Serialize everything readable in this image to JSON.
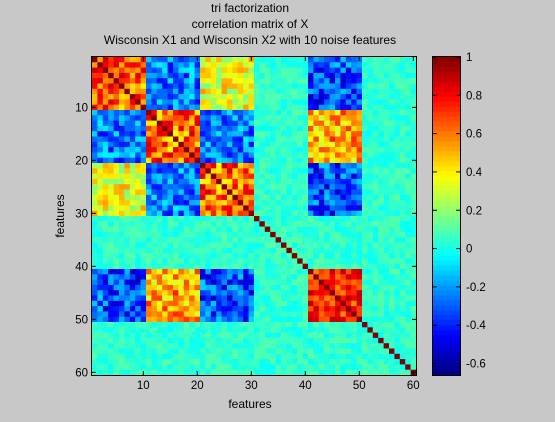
{
  "chart_data": {
    "type": "heatmap",
    "title": [
      "tri factorization",
      "correlation matrix of X",
      "Wisconsin X1 and Wisconsin X2 with 10 noise features"
    ],
    "xlabel": "features",
    "ylabel": "features",
    "x_ticks": [
      10,
      20,
      30,
      40,
      50,
      60
    ],
    "y_ticks": [
      10,
      20,
      30,
      40,
      50,
      60
    ],
    "n_features": 60,
    "colormap": "jet",
    "clim": [
      -0.66,
      1.0
    ],
    "colorbar_ticks": [
      1,
      0.8,
      0.6,
      0.4,
      0.2,
      0,
      -0.2,
      -0.4,
      -0.6
    ],
    "colorbar_tick_labels": [
      "1",
      "0.8",
      "0.6",
      "0.4",
      "0.2",
      "0",
      "-0.2",
      "-0.4",
      "-0.6"
    ],
    "y_direction": "reverse",
    "feature_groups": [
      {
        "start": 1,
        "end": 10
      },
      {
        "start": 11,
        "end": 20
      },
      {
        "start": 21,
        "end": 30
      },
      {
        "start": 31,
        "end": 40
      },
      {
        "start": 41,
        "end": 50
      },
      {
        "start": 51,
        "end": 60
      }
    ]
  },
  "colors": {
    "figure_background": "#c8c8c8",
    "axes_edge": "#000000"
  }
}
